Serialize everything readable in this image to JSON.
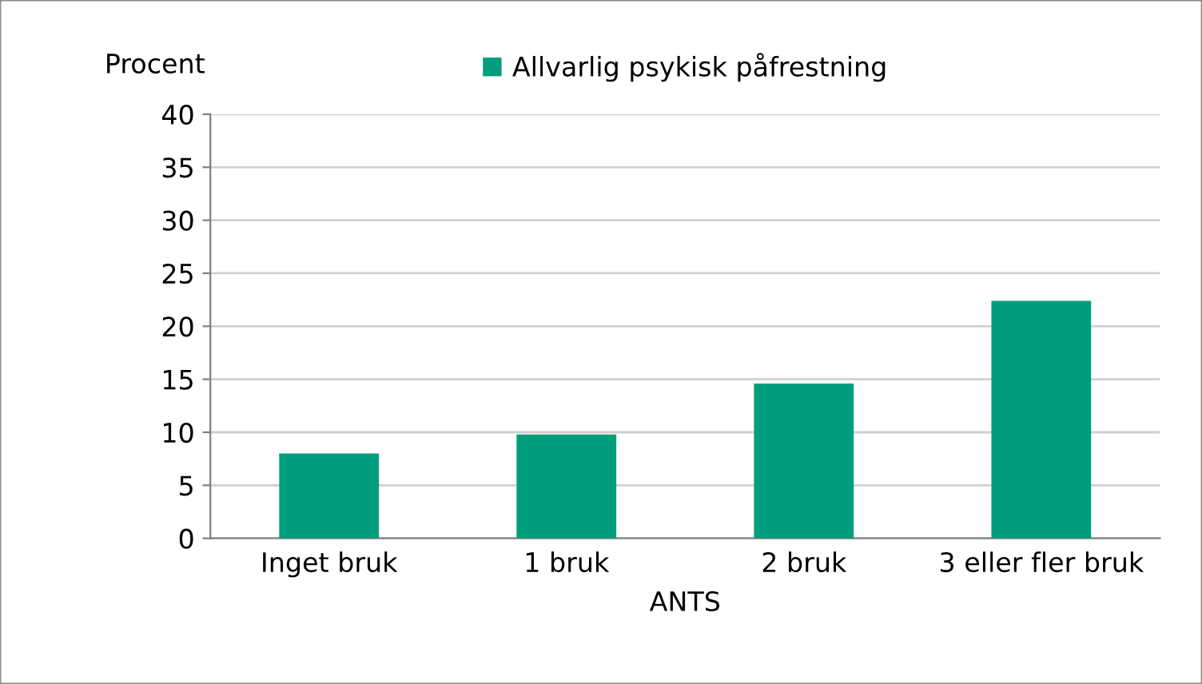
{
  "chart_data": {
    "type": "bar",
    "ylabel": "Procent",
    "xlabel": "ANTS",
    "categories": [
      "Inget bruk",
      "1 bruk",
      "2 bruk",
      "3 eller fler bruk"
    ],
    "series": [
      {
        "name": "Allvarlig psykisk påfrestning",
        "color": "#009e7d",
        "values": [
          8.0,
          9.8,
          14.6,
          22.4
        ]
      }
    ],
    "ylim": [
      0,
      40
    ],
    "yticks": [
      0,
      5,
      10,
      15,
      20,
      25,
      30,
      35,
      40
    ],
    "grid": "y",
    "legend": "top"
  }
}
